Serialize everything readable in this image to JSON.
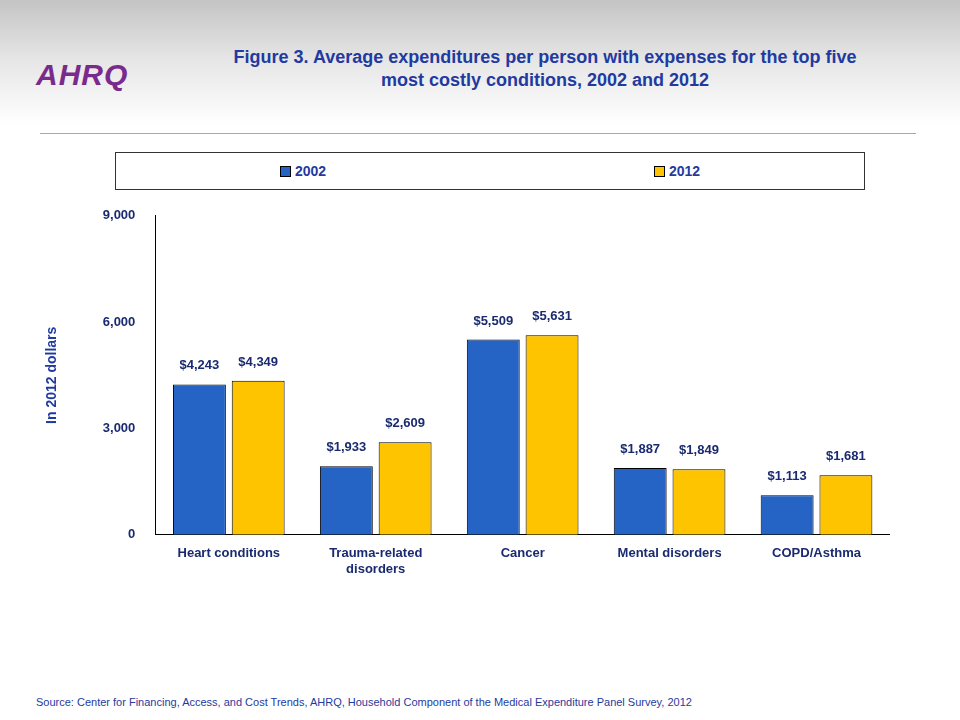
{
  "chart_data": {
    "type": "bar",
    "title": "Figure 3. Average expenditures per person with expenses for the top five most costly conditions, 2002 and 2012",
    "logo": "AHRQ",
    "y_label": "In 2012 dollars",
    "source": "Source: Center for Financing, Access, and Cost Trends, AHRQ, Household Component of the Medical Expenditure Panel Survey,  2012",
    "categories": [
      "Heart conditions",
      "Trauma-related disorders",
      "Cancer",
      "Mental disorders",
      "COPD/Asthma"
    ],
    "series": [
      {
        "name": "2002",
        "color": "#2563c4",
        "values": [
          4243,
          1933,
          5509,
          1887,
          1113
        ],
        "value_labels": [
          "$4,243",
          "$1,933",
          "$5,509",
          "$1,887",
          "$1,113"
        ]
      },
      {
        "name": "2012",
        "color": "#ffc400",
        "values": [
          4349,
          2609,
          5631,
          1849,
          1681
        ],
        "value_labels": [
          "$4,349",
          "$2,609",
          "$5,631",
          "$1,849",
          "$1,681"
        ]
      }
    ],
    "ylim": [
      0,
      9000
    ],
    "yticks": [
      0,
      {
        "value": 3000,
        "label": "3,000"
      },
      {
        "value": 6000,
        "label": "6,000"
      },
      {
        "value": 9000,
        "label": "9,000"
      }
    ],
    "grid": false,
    "legend": "top",
    "data_labels": true
  }
}
